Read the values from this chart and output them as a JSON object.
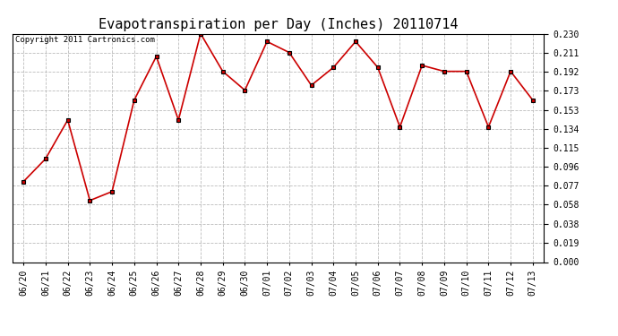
{
  "title": "Evapotranspiration per Day (Inches) 20110714",
  "copyright_text": "Copyright 2011 Cartronics.com",
  "dates": [
    "06/20",
    "06/21",
    "06/22",
    "06/23",
    "06/24",
    "06/25",
    "06/26",
    "06/27",
    "06/28",
    "06/29",
    "06/30",
    "07/01",
    "07/02",
    "07/03",
    "07/04",
    "07/05",
    "07/06",
    "07/07",
    "07/08",
    "07/09",
    "07/10",
    "07/11",
    "07/12",
    "07/13"
  ],
  "values": [
    0.081,
    0.104,
    0.143,
    0.062,
    0.071,
    0.163,
    0.207,
    0.143,
    0.23,
    0.192,
    0.173,
    0.222,
    0.211,
    0.178,
    0.196,
    0.222,
    0.196,
    0.136,
    0.198,
    0.192,
    0.192,
    0.136,
    0.192,
    0.163
  ],
  "line_color": "#cc0000",
  "marker": "s",
  "marker_size": 3,
  "marker_face_color": "#cc0000",
  "marker_edge_color": "#000000",
  "ylim": [
    0.0,
    0.23
  ],
  "yticks": [
    0.0,
    0.019,
    0.038,
    0.058,
    0.077,
    0.096,
    0.115,
    0.134,
    0.153,
    0.173,
    0.192,
    0.211,
    0.23
  ],
  "background_color": "#ffffff",
  "grid_color": "#bbbbbb",
  "title_fontsize": 11,
  "tick_fontsize": 7,
  "copyright_fontsize": 6.5
}
